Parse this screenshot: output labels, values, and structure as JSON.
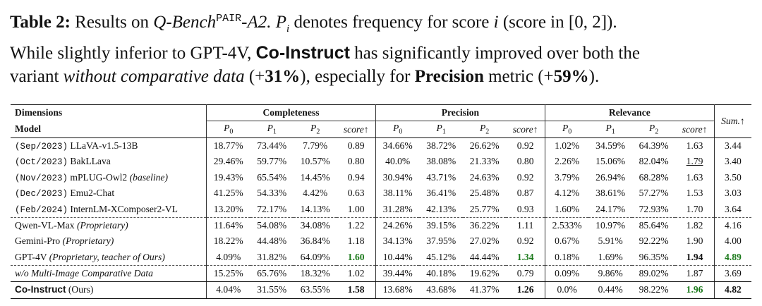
{
  "caption": [
    [
      "Table 2:",
      " Results on ",
      "Q-Bench",
      "PAIR",
      "-A2. ",
      "P",
      "i",
      " denotes frequency for score ",
      "i",
      " (score in [0, 2])."
    ],
    [
      "While slightly inferior to GPT-4V, ",
      "Co-Instruct",
      " has significantly improved over both the"
    ],
    [
      "variant ",
      "without comparative data",
      " (+",
      "31%",
      "), especially for ",
      "Precision",
      " metric (+",
      "59%",
      ")."
    ]
  ],
  "table": {
    "group_header": {
      "first": "Dimensions",
      "groups": [
        "Completeness",
        "Precision",
        "Relevance"
      ],
      "last": "Sum.↑"
    },
    "column_header": {
      "first": "Model",
      "columns": [
        {
          "symbol": "P",
          "subscript": "0"
        },
        {
          "symbol": "P",
          "subscript": "1"
        },
        {
          "symbol": "P",
          "subscript": "2"
        },
        "score↑"
      ]
    },
    "rows": [
      {
        "date": "(Sep/2023)",
        "name": "LLaVA-v1.5-13B",
        "cells": [
          "18.77%",
          "73.44%",
          "7.79%",
          "0.89",
          "34.66%",
          "38.72%",
          "26.62%",
          "0.92",
          "1.02%",
          "34.59%",
          "64.39%",
          "1.63",
          "3.44"
        ]
      },
      {
        "date": "(Oct/2023)",
        "name": "BakLLava",
        "cells": [
          "29.46%",
          "59.77%",
          "10.57%",
          "0.80",
          "40.0%",
          "38.08%",
          "21.33%",
          "0.80",
          "2.26%",
          "15.06%",
          "82.04%",
          "1.79",
          "3.40"
        ]
      },
      {
        "date": "(Nov/2023)",
        "name": "mPLUG-Owl2",
        "note": "(baseline)",
        "cells": [
          "19.43%",
          "65.54%",
          "14.45%",
          "0.94",
          "30.94%",
          "43.71%",
          "24.63%",
          "0.92",
          "3.79%",
          "26.94%",
          "68.28%",
          "1.63",
          "3.50"
        ]
      },
      {
        "date": "(Dec/2023)",
        "name": "Emu2-Chat",
        "cells": [
          "41.25%",
          "54.33%",
          "4.42%",
          "0.63",
          "38.11%",
          "36.41%",
          "25.48%",
          "0.87",
          "4.12%",
          "38.61%",
          "57.27%",
          "1.53",
          "3.03"
        ]
      },
      {
        "date": "(Feb/2024)",
        "name": "InternLM-XComposer2-VL",
        "cells": [
          "13.20%",
          "72.17%",
          "14.13%",
          "1.00",
          "31.28%",
          "42.13%",
          "25.77%",
          "0.93",
          "1.60%",
          "24.17%",
          "72.93%",
          "1.70",
          "3.64"
        ]
      },
      {
        "name": "Qwen-VL-Max",
        "note": "(Proprietary)",
        "cells": [
          "11.64%",
          "54.08%",
          "34.08%",
          "1.22",
          "24.26%",
          "39.15%",
          "36.22%",
          "1.11",
          "2.533%",
          "10.97%",
          "85.64%",
          "1.82",
          "4.16"
        ]
      },
      {
        "name": "Gemini-Pro",
        "note": "(Proprietary)",
        "cells": [
          "18.22%",
          "44.48%",
          "36.84%",
          "1.18",
          "34.13%",
          "37.95%",
          "27.02%",
          "0.92",
          "0.67%",
          "5.91%",
          "92.22%",
          "1.90",
          "4.00"
        ]
      },
      {
        "name": "GPT-4V",
        "note": "(Proprietary, teacher of Ours)",
        "cells": [
          "4.09%",
          "31.82%",
          "64.09%",
          "1.60",
          "10.44%",
          "45.12%",
          "44.44%",
          "1.34",
          "0.18%",
          "1.69%",
          "96.35%",
          "1.94",
          "4.89"
        ]
      },
      {
        "name": "w/o Multi-Image Comparative Data",
        "cells": [
          "15.25%",
          "65.76%",
          "18.32%",
          "1.02",
          "39.44%",
          "40.18%",
          "19.62%",
          "0.79",
          "0.09%",
          "9.86%",
          "89.02%",
          "1.87",
          "3.69"
        ]
      },
      {
        "name": "Co-Instruct",
        "note": "(Ours)",
        "cells": [
          "4.04%",
          "31.55%",
          "63.55%",
          "1.58",
          "13.68%",
          "43.68%",
          "41.37%",
          "1.26",
          "0.0%",
          "0.44%",
          "98.22%",
          "1.96",
          "4.82"
        ]
      }
    ]
  }
}
